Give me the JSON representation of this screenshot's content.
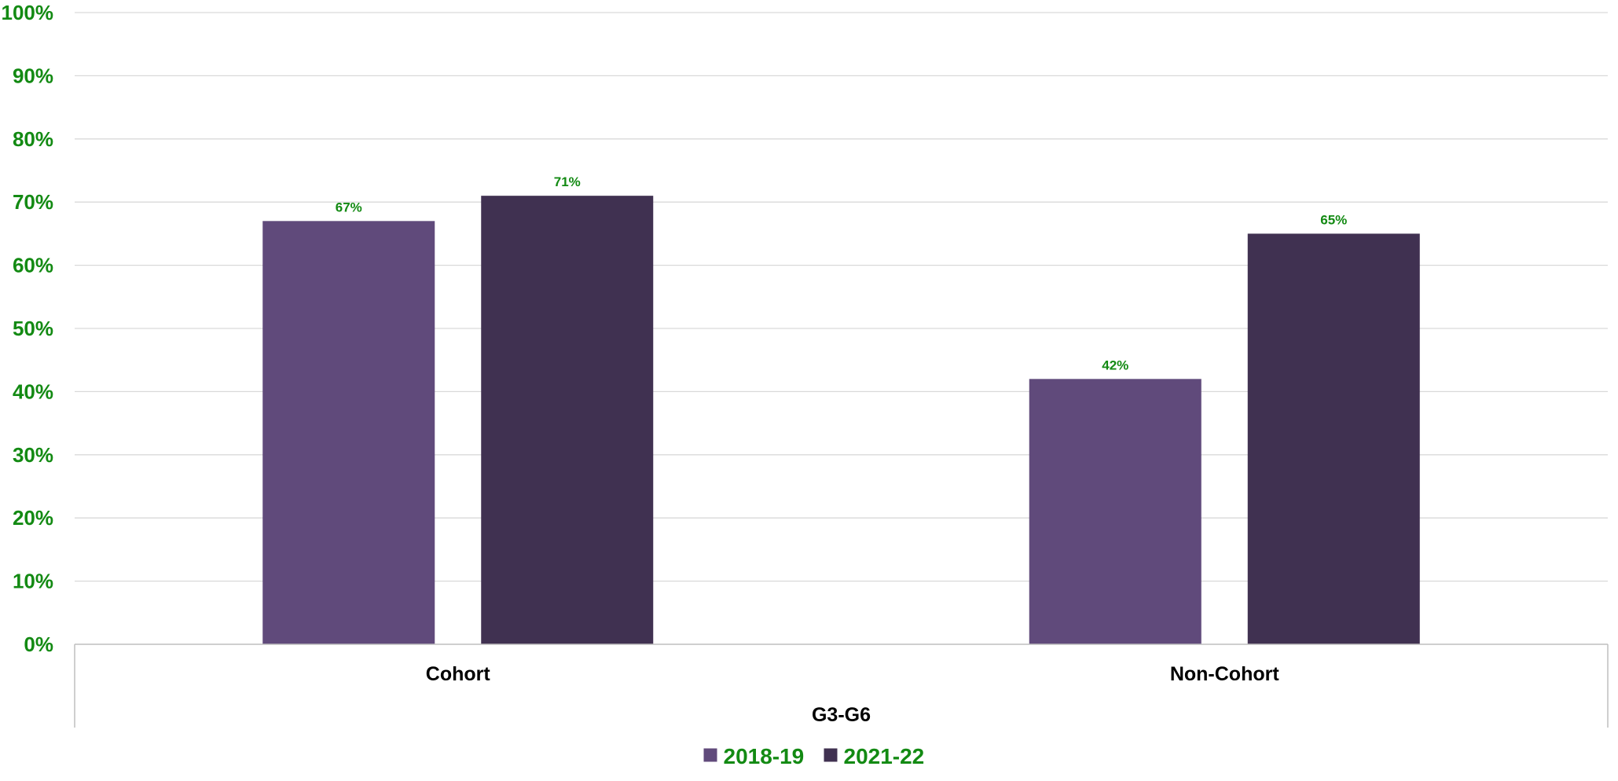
{
  "chart_data": {
    "type": "bar",
    "categories": [
      "Cohort",
      "Non-Cohort"
    ],
    "group_label": "G3-G6",
    "series": [
      {
        "name": "2018-19",
        "values": [
          67,
          42
        ],
        "labels": [
          "67%",
          "42%"
        ],
        "color": "#604a7b"
      },
      {
        "name": "2021-22",
        "values": [
          71,
          65
        ],
        "labels": [
          "71%",
          "65%"
        ],
        "color": "#403151"
      }
    ],
    "ylim": [
      0,
      100
    ],
    "yticks": [
      "0%",
      "10%",
      "20%",
      "30%",
      "40%",
      "50%",
      "60%",
      "70%",
      "80%",
      "90%",
      "100%"
    ],
    "grid": true,
    "legend_position": "bottom",
    "title": "",
    "xlabel": "",
    "ylabel": ""
  },
  "colors": {
    "text_accent": "#138a13",
    "gridline": "#d9d9d9",
    "axis": "#bfbfbf"
  }
}
